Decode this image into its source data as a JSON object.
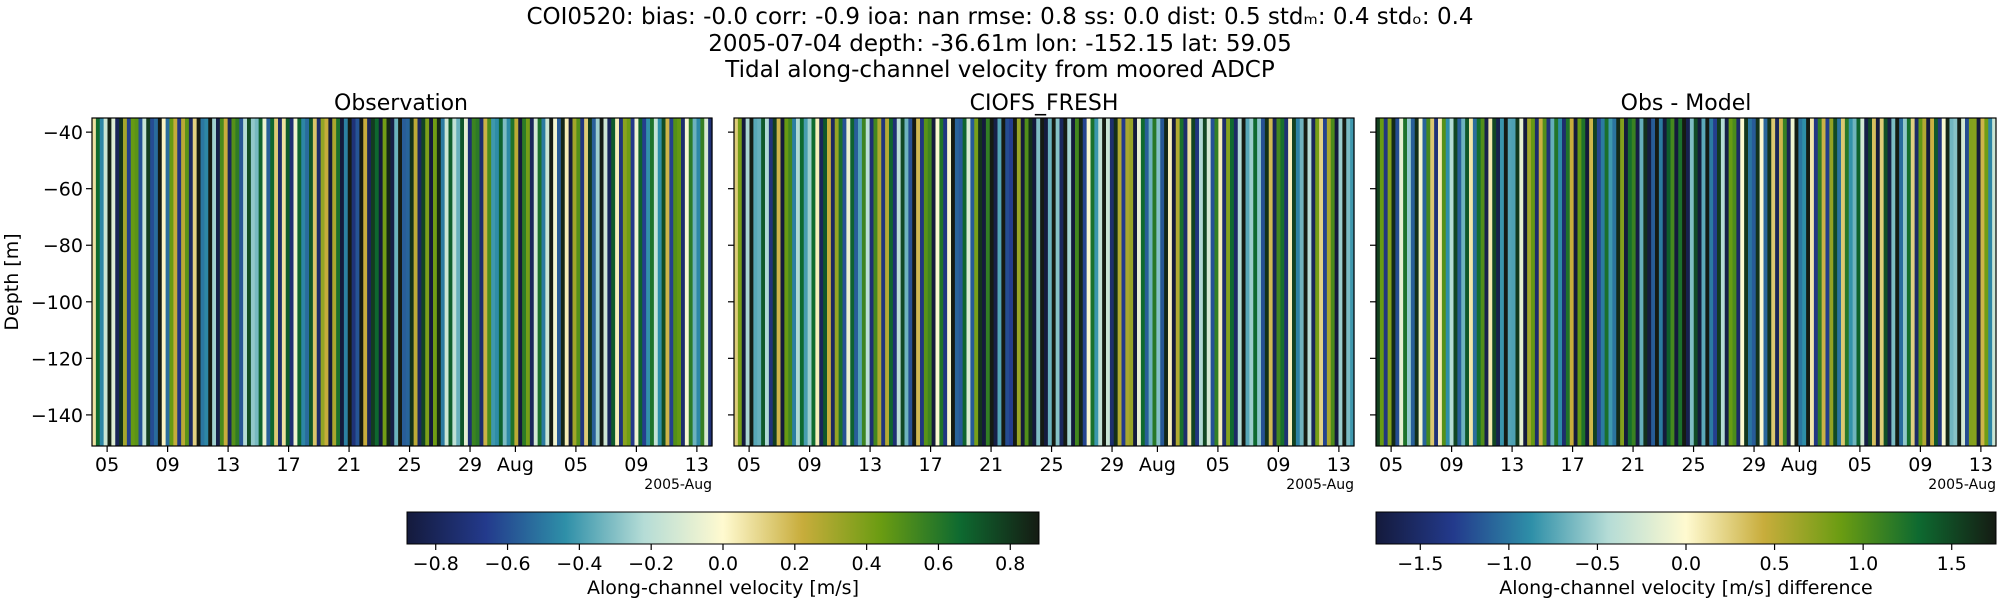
{
  "header": {
    "stats_line": "COI0520: bias: -0.0  corr: -0.9  ioa: nan  rmse: 0.8  ss: 0.0  dist: 0.5  stdₘ: 0.4  stdₒ: 0.4",
    "location_line": "2005-07-04 depth: -36.61m lon: -152.15 lat: 59.05",
    "description_line": "Tidal along-channel velocity from moored ADCP"
  },
  "colors": {
    "cmap": [
      "#141a3c",
      "#233a8c",
      "#2e8fa8",
      "#b5dcd6",
      "#fffad0",
      "#c8ad3c",
      "#6a9c12",
      "#0e6a30",
      "#151b13"
    ]
  },
  "chart_data": [
    {
      "type": "heatmap",
      "title": "Observation",
      "ylabel": "Depth [m]",
      "xlabel": "",
      "x_ticks": [
        "05",
        "09",
        "13",
        "17",
        "21",
        "25",
        "29",
        "Aug",
        "05",
        "09",
        "13"
      ],
      "x_offset_label": "2005-Aug",
      "y_ticks": [
        -40,
        -60,
        -80,
        -100,
        -120,
        -140
      ],
      "ylim": [
        -151,
        -35
      ],
      "xlim": [
        "2005-07-04",
        "2005-08-14"
      ],
      "colorbar": {
        "label": "Along-channel velocity [m/s]",
        "ticks": [
          "−0.8",
          "−0.6",
          "−0.4",
          "−0.2",
          "0.0",
          "0.2",
          "0.4",
          "0.6",
          "0.8"
        ],
        "vmin": -0.88,
        "vmax": 0.88
      }
    },
    {
      "type": "heatmap",
      "title": "CIOFS_FRESH",
      "x_ticks": [
        "05",
        "09",
        "13",
        "17",
        "21",
        "25",
        "29",
        "Aug",
        "05",
        "09",
        "13"
      ],
      "x_offset_label": "2005-Aug",
      "ylim": [
        -151,
        -35
      ],
      "xlim": [
        "2005-07-04",
        "2005-08-14"
      ]
    },
    {
      "type": "heatmap",
      "title": "Obs - Model",
      "x_ticks": [
        "05",
        "09",
        "13",
        "17",
        "21",
        "25",
        "29",
        "Aug",
        "05",
        "09",
        "13"
      ],
      "x_offset_label": "2005-Aug",
      "ylim": [
        -151,
        -35
      ],
      "xlim": [
        "2005-07-04",
        "2005-08-14"
      ],
      "colorbar": {
        "label": "Along-channel velocity [m/s] difference",
        "ticks": [
          "−1.5",
          "−1.0",
          "−0.5",
          "0.0",
          "0.5",
          "1.0",
          "1.5"
        ],
        "vmin": -1.75,
        "vmax": 1.75
      }
    }
  ]
}
